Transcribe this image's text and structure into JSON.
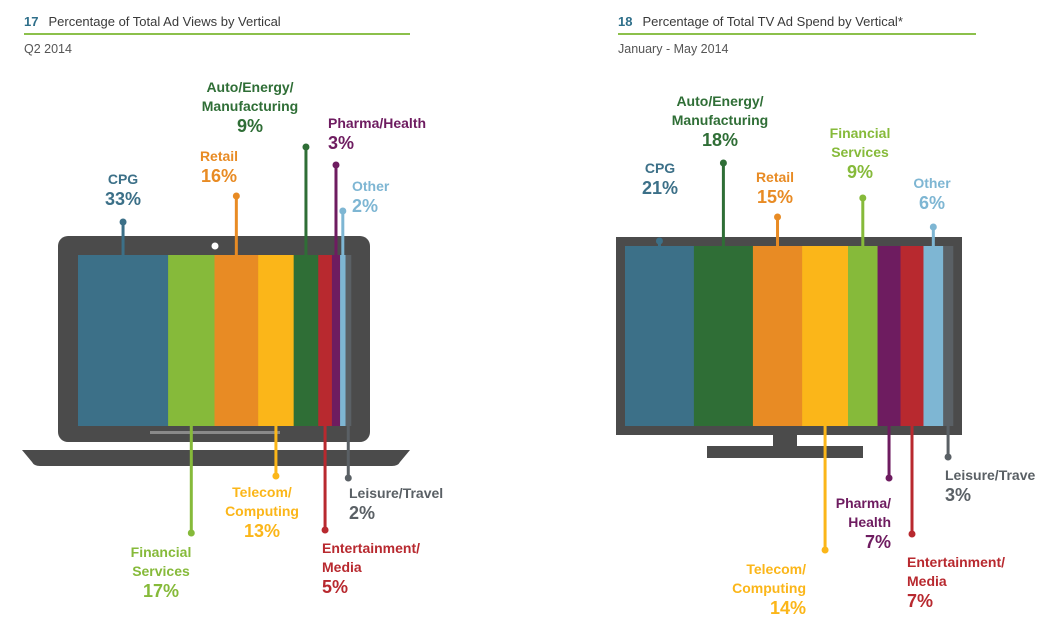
{
  "chart_data": [
    {
      "type": "bar",
      "number": "17",
      "title": "Percentage of Total Ad Views by Vertical",
      "subtitle": "Q2 2014",
      "series": [
        {
          "name": "CPG",
          "label": "CPG",
          "pct": "33%",
          "value": 33,
          "color": "#3c7088"
        },
        {
          "name": "Financial Services",
          "label": "Financial\nServices",
          "pct": "17%",
          "value": 17,
          "color": "#86ba3a"
        },
        {
          "name": "Retail",
          "label": "Retail",
          "pct": "16%",
          "value": 16,
          "color": "#e88b24"
        },
        {
          "name": "Telecom/Computing",
          "label": "Telecom/\nComputing",
          "pct": "13%",
          "value": 13,
          "color": "#fbb619"
        },
        {
          "name": "Auto/Energy/Manufacturing",
          "label": "Auto/Energy/\nManufacturing",
          "pct": "9%",
          "value": 9,
          "color": "#2f6e36"
        },
        {
          "name": "Entertainment/Media",
          "label": "Entertainment/\nMedia",
          "pct": "5%",
          "value": 5,
          "color": "#b8292f"
        },
        {
          "name": "Pharma/Health",
          "label": "Pharma/Health",
          "pct": "3%",
          "value": 3,
          "color": "#6e1c60"
        },
        {
          "name": "Other",
          "label": "Other",
          "pct": "2%",
          "value": 2,
          "color": "#7eb6d3"
        },
        {
          "name": "Leisure/Travel",
          "label": "Leisure/Travel",
          "pct": "2%",
          "value": 2,
          "color": "#5a6065"
        }
      ]
    },
    {
      "type": "bar",
      "number": "18",
      "title": "Percentage of Total TV Ad Spend by Vertical*",
      "subtitle": "January - May 2014",
      "series": [
        {
          "name": "CPG",
          "label": "CPG",
          "pct": "21%",
          "value": 21,
          "color": "#3c7088"
        },
        {
          "name": "Auto/Energy/Manufacturing",
          "label": "Auto/Energy/\nManufacturing",
          "pct": "18%",
          "value": 18,
          "color": "#2f6e36"
        },
        {
          "name": "Retail",
          "label": "Retail",
          "pct": "15%",
          "value": 15,
          "color": "#e88b24"
        },
        {
          "name": "Telecom/Computing",
          "label": "Telecom/\nComputing",
          "pct": "14%",
          "value": 14,
          "color": "#fbb619"
        },
        {
          "name": "Financial Services",
          "label": "Financial\nServices",
          "pct": "9%",
          "value": 9,
          "color": "#86ba3a"
        },
        {
          "name": "Pharma/Health",
          "label": "Pharma/\nHealth",
          "pct": "7%",
          "value": 7,
          "color": "#6e1c60"
        },
        {
          "name": "Entertainment/Media",
          "label": "Entertainment/\nMedia",
          "pct": "7%",
          "value": 7,
          "color": "#b8292f"
        },
        {
          "name": "Other",
          "label": "Other",
          "pct": "6%",
          "value": 6,
          "color": "#7eb6d3"
        },
        {
          "name": "Leisure/Travel",
          "label": "Leisure/Trave",
          "pct": "3%",
          "value": 3,
          "color": "#5a6065"
        }
      ]
    }
  ]
}
